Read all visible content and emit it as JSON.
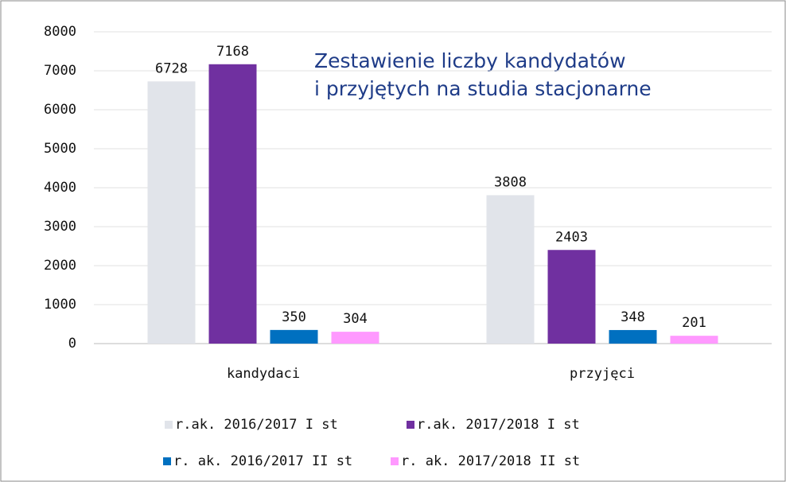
{
  "chart_data": {
    "type": "bar",
    "title": [
      "Zestawienie liczby kandydatów",
      "i przyjętych na studia stacjonarne"
    ],
    "categories": [
      "kandydaci",
      "przyjęci"
    ],
    "series": [
      {
        "name": "r.ak. 2016/2017 I st",
        "color": "#e1e4ea",
        "values": [
          6728,
          3808
        ]
      },
      {
        "name": "r.ak. 2017/2018 I st",
        "color": "#7030a0",
        "values": [
          7168,
          2403
        ]
      },
      {
        "name": "r. ak. 2016/2017 II st",
        "color": "#0070c0",
        "values": [
          350,
          348
        ]
      },
      {
        "name": "r. ak. 2017/2018 II st",
        "color": "#ff99ff",
        "values": [
          304,
          201
        ]
      }
    ],
    "ylim": [
      0,
      8000
    ],
    "yticks": [
      0,
      1000,
      2000,
      3000,
      4000,
      5000,
      6000,
      7000,
      8000
    ],
    "grid": true,
    "legend": "bottom"
  }
}
